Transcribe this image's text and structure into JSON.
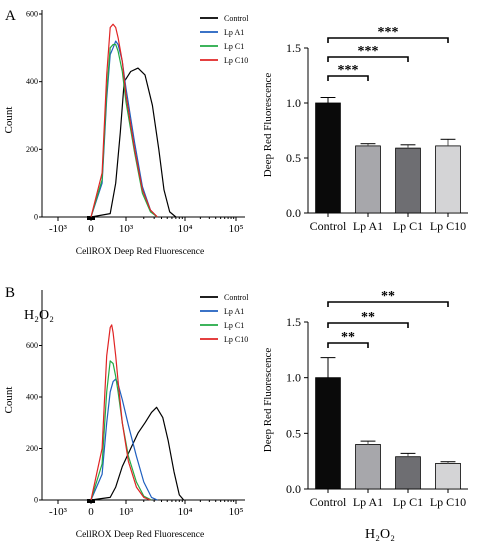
{
  "colors": {
    "Control": "#000000",
    "Lp A1": "#1f5fbf",
    "Lp C1": "#22aa44",
    "Lp C10": "#e02424",
    "bar_Control": "#0a0a0a",
    "bar_Lp A1": "#a7a7ab",
    "bar_Lp C1": "#6e6e72",
    "bar_Lp C10": "#d4d4d6"
  },
  "chart_data": [
    {
      "panel": "A",
      "type": "line",
      "title": "",
      "xlabel": "CellROX Deep Red Fluorescence",
      "ylabel": "Count",
      "ylim": [
        0,
        600
      ],
      "yticks": [
        "0",
        "200",
        "400",
        "600"
      ],
      "xticks": [
        "-10³",
        "0",
        "10³",
        "10⁴",
        "10⁵"
      ],
      "legend_placement": "top-right",
      "series": [
        {
          "name": "Control",
          "x": [
            0,
            300,
            500,
            700,
            900,
            1200,
            1600,
            2100,
            2800,
            3600,
            4400,
            5500,
            7000
          ],
          "y": [
            0,
            10,
            100,
            250,
            400,
            430,
            440,
            420,
            330,
            200,
            80,
            15,
            0
          ]
        },
        {
          "name": "Lp A1",
          "x": [
            0,
            100,
            200,
            300,
            400,
            500,
            600,
            800,
            1000,
            1400,
            1900,
            2600,
            3400
          ],
          "y": [
            0,
            100,
            350,
            480,
            500,
            520,
            510,
            460,
            380,
            220,
            90,
            20,
            0
          ]
        },
        {
          "name": "Lp C1",
          "x": [
            0,
            100,
            200,
            300,
            400,
            500,
            600,
            800,
            1000,
            1400,
            1900,
            2600,
            3400
          ],
          "y": [
            0,
            110,
            370,
            500,
            510,
            510,
            490,
            430,
            340,
            190,
            70,
            15,
            0
          ]
        },
        {
          "name": "Lp C10",
          "x": [
            0,
            100,
            200,
            300,
            400,
            500,
            600,
            800,
            1000,
            1400,
            1900,
            2600,
            3400
          ],
          "y": [
            0,
            130,
            420,
            560,
            570,
            560,
            530,
            460,
            360,
            200,
            80,
            20,
            0
          ]
        }
      ]
    },
    {
      "panel": "A",
      "type": "bar",
      "title": "",
      "xlabel": "",
      "ylabel": "Deep Red Fluorescence",
      "categories": [
        "Control",
        "Lp A1",
        "Lp C1",
        "Lp C10"
      ],
      "values": [
        1.0,
        0.61,
        0.59,
        0.61
      ],
      "errors": [
        0.05,
        0.02,
        0.03,
        0.06
      ],
      "ylim": [
        0,
        1.5
      ],
      "yticks": [
        "0.0",
        "0.5",
        "1.0",
        "1.5"
      ],
      "significance": [
        {
          "from": "Control",
          "to": "Lp A1",
          "label": "***"
        },
        {
          "from": "Control",
          "to": "Lp C1",
          "label": "***"
        },
        {
          "from": "Control",
          "to": "Lp C10",
          "label": "***"
        }
      ]
    },
    {
      "panel": "B",
      "type": "line",
      "title": "",
      "annotation": "H₂O₂",
      "xlabel": "CellROX Deep Red Fluorescence",
      "ylabel": "Count",
      "ylim": [
        0,
        800
      ],
      "yticks": [
        "0",
        "200",
        "400",
        "600"
      ],
      "xticks": [
        "-10³",
        "0",
        "10³",
        "10⁴",
        "10⁵"
      ],
      "legend_placement": "top-right",
      "series": [
        {
          "name": "Control",
          "x": [
            0,
            300,
            500,
            800,
            1200,
            1600,
            2100,
            2700,
            3300,
            4200,
            5200,
            6500,
            8000,
            9500
          ],
          "y": [
            0,
            10,
            50,
            130,
            200,
            260,
            300,
            340,
            360,
            320,
            230,
            110,
            20,
            0
          ]
        },
        {
          "name": "Lp A1",
          "x": [
            0,
            100,
            200,
            300,
            400,
            500,
            600,
            800,
            1100,
            1500,
            2000,
            2700,
            3400
          ],
          "y": [
            0,
            100,
            300,
            420,
            460,
            470,
            450,
            390,
            290,
            170,
            70,
            10,
            0
          ]
        },
        {
          "name": "Lp C1",
          "x": [
            0,
            100,
            200,
            300,
            400,
            500,
            600,
            800,
            1100,
            1500,
            2000,
            2700
          ],
          "y": [
            0,
            140,
            420,
            540,
            530,
            480,
            420,
            300,
            170,
            70,
            15,
            0
          ]
        },
        {
          "name": "Lp C10",
          "x": [
            0,
            100,
            200,
            300,
            350,
            400,
            500,
            600,
            800,
            1100,
            1500,
            2000,
            2600
          ],
          "y": [
            0,
            200,
            560,
            670,
            680,
            650,
            560,
            460,
            300,
            150,
            50,
            10,
            0
          ]
        }
      ]
    },
    {
      "panel": "B",
      "type": "bar",
      "title": "",
      "xlabel": "H₂O₂",
      "ylabel": "Deep Red Fluorescence",
      "categories": [
        "Control",
        "Lp A1",
        "Lp C1",
        "Lp C10"
      ],
      "values": [
        1.0,
        0.4,
        0.29,
        0.23
      ],
      "errors": [
        0.18,
        0.03,
        0.03,
        0.015
      ],
      "ylim": [
        0,
        1.5
      ],
      "yticks": [
        "0.0",
        "0.5",
        "1.0",
        "1.5"
      ],
      "significance": [
        {
          "from": "Control",
          "to": "Lp A1",
          "label": "**"
        },
        {
          "from": "Control",
          "to": "Lp C1",
          "label": "**"
        },
        {
          "from": "Control",
          "to": "Lp C10",
          "label": "**"
        }
      ]
    }
  ]
}
